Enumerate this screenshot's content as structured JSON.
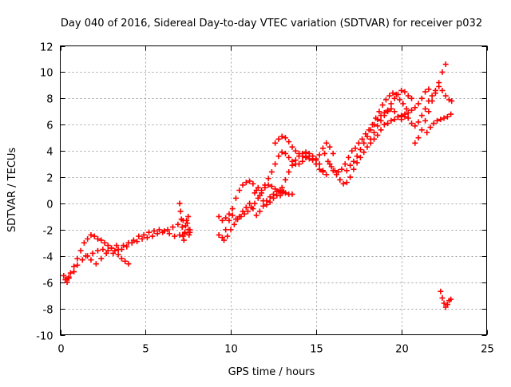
{
  "chart_data": {
    "type": "scatter",
    "title": "Day 040 of 2016, Sidereal Day-to-day VTEC variation (SDTVAR) for receiver p032",
    "xlabel": "GPS time / hours",
    "ylabel": "SDTVAR / TECUs",
    "xlim": [
      0,
      25
    ],
    "ylim": [
      -10,
      12
    ],
    "x_ticks": [
      0,
      5,
      10,
      15,
      20,
      25
    ],
    "x_tick_labels": [
      "0",
      "5",
      "10",
      "15",
      "20",
      "25"
    ],
    "y_ticks": [
      -10,
      -8,
      -6,
      -4,
      -2,
      0,
      2,
      4,
      6,
      8,
      10,
      12
    ],
    "y_tick_labels": [
      "-10",
      "-8",
      "-6",
      "-4",
      "-2",
      "0",
      "2",
      "4",
      "6",
      "8",
      "10",
      "12"
    ],
    "grid": true,
    "marker": "+",
    "color": "#ff0000",
    "series": [
      {
        "x": [
          0.2,
          0.3,
          0.4,
          0.5,
          0.6,
          0.8,
          1.0,
          1.2,
          1.4,
          1.6,
          1.8,
          2.0,
          2.2,
          2.4,
          2.6,
          2.8,
          3.0,
          3.2,
          3.4,
          3.6,
          3.8,
          4.0
        ],
        "y": [
          -5.5,
          -5.8,
          -6.0,
          -5.7,
          -5.3,
          -4.8,
          -4.2,
          -3.6,
          -3.0,
          -2.7,
          -2.4,
          -2.5,
          -2.7,
          -2.8,
          -3.0,
          -3.2,
          -3.4,
          -3.6,
          -3.9,
          -4.2,
          -4.4,
          -4.6
        ]
      },
      {
        "x": [
          0.3,
          0.5,
          0.8,
          1.0,
          1.3,
          1.6,
          1.9,
          2.2,
          2.5,
          2.8,
          3.1,
          3.4,
          3.7,
          4.0,
          4.3,
          4.6,
          4.9,
          5.2,
          5.5,
          5.8,
          6.1,
          6.4,
          6.7,
          7.0,
          7.3,
          7.6
        ],
        "y": [
          -5.8,
          -5.6,
          -5.2,
          -4.7,
          -4.3,
          -4.0,
          -3.8,
          -3.6,
          -3.5,
          -3.6,
          -3.8,
          -3.5,
          -3.2,
          -3.0,
          -2.8,
          -2.5,
          -2.4,
          -2.2,
          -2.1,
          -2.0,
          -2.1,
          -2.3,
          -2.5,
          -2.4,
          -2.2,
          -2.0
        ]
      },
      {
        "x": [
          1.5,
          1.8,
          2.1,
          2.4,
          2.7,
          3.0,
          3.3,
          3.6,
          3.9,
          4.2,
          4.5,
          4.8,
          5.1,
          5.4,
          5.7,
          6.0,
          6.3,
          6.6,
          6.9,
          7.2,
          7.5
        ],
        "y": [
          -4.0,
          -4.3,
          -4.6,
          -4.2,
          -3.8,
          -3.4,
          -3.2,
          -3.5,
          -3.3,
          -3.0,
          -2.9,
          -2.7,
          -2.6,
          -2.5,
          -2.3,
          -2.2,
          -2.0,
          -1.8,
          -1.6,
          -1.3,
          -1.0
        ]
      },
      {
        "x": [
          7.0,
          7.05,
          7.1,
          7.15,
          7.2,
          7.25,
          7.3,
          7.35,
          7.4,
          7.45,
          7.5,
          7.55,
          7.6
        ],
        "y": [
          0.0,
          -0.6,
          -1.2,
          -1.8,
          -2.5,
          -2.8,
          -2.3,
          -1.7,
          -1.3,
          -1.5,
          -2.0,
          -2.4,
          -2.2
        ]
      },
      {
        "x": [
          9.3,
          9.5,
          9.7,
          9.9,
          10.1,
          10.3,
          10.5,
          10.7,
          10.9,
          11.1,
          11.3,
          11.5,
          11.7,
          11.9,
          12.1,
          12.3,
          12.5,
          12.7,
          12.9,
          13.1
        ],
        "y": [
          -1.0,
          -1.3,
          -1.1,
          -0.8,
          -0.9,
          -1.2,
          -1.0,
          -0.6,
          -0.3,
          0.0,
          -0.4,
          -0.9,
          -0.6,
          -0.2,
          0.2,
          0.5,
          0.7,
          0.9,
          1.0,
          0.9
        ]
      },
      {
        "x": [
          9.3,
          9.5,
          9.7,
          9.9,
          10.1,
          10.3,
          10.5,
          10.7,
          10.9,
          11.1,
          11.3,
          11.5,
          11.7,
          11.9,
          12.1,
          12.3,
          12.5,
          12.7,
          12.9
        ],
        "y": [
          -2.4,
          -2.6,
          -2.0,
          -1.3,
          -0.4,
          0.4,
          1.0,
          1.4,
          1.6,
          1.7,
          1.5,
          1.0,
          0.6,
          0.2,
          -0.1,
          0.1,
          0.4,
          0.6,
          0.6
        ]
      },
      {
        "x": [
          9.6,
          9.8,
          10.0,
          10.2,
          10.4,
          10.6,
          10.8,
          11.0,
          11.2,
          11.4,
          11.6,
          11.8,
          12.0,
          12.2,
          12.4,
          12.6,
          12.8,
          13.0,
          13.2,
          13.4,
          13.6
        ],
        "y": [
          -2.8,
          -2.5,
          -2.0,
          -1.6,
          -1.2,
          -1.0,
          -0.8,
          -0.6,
          -0.3,
          0.0,
          0.4,
          0.8,
          1.2,
          1.4,
          1.3,
          1.1,
          0.9,
          0.8,
          0.8,
          0.7,
          0.7
        ]
      },
      {
        "x": [
          11.4,
          11.6,
          11.8,
          12.0,
          12.2,
          12.4,
          12.6,
          12.8,
          13.0,
          13.2,
          13.4,
          13.6,
          13.8,
          14.0,
          14.2,
          14.4,
          14.6,
          14.8,
          15.0,
          15.2,
          15.4,
          15.6,
          15.8,
          16.0
        ],
        "y": [
          0.8,
          1.2,
          1.0,
          1.4,
          1.9,
          2.4,
          3.0,
          3.6,
          3.9,
          3.8,
          3.5,
          3.2,
          3.0,
          3.0,
          3.2,
          3.5,
          3.6,
          3.4,
          3.3,
          3.7,
          4.2,
          4.6,
          4.3,
          3.8
        ]
      },
      {
        "x": [
          12.6,
          12.8,
          13.0,
          13.2,
          13.4,
          13.6,
          13.8,
          14.0,
          14.2,
          14.4,
          14.6,
          14.8,
          15.0,
          15.2,
          15.4,
          15.6
        ],
        "y": [
          4.6,
          4.9,
          5.1,
          5.0,
          4.7,
          4.3,
          4.0,
          3.8,
          3.6,
          3.5,
          3.4,
          3.3,
          3.0,
          2.6,
          2.4,
          2.2
        ]
      },
      {
        "x": [
          13.0,
          13.2,
          13.4,
          13.6,
          13.8,
          14.0,
          14.2,
          14.4,
          14.6,
          14.8,
          15.0,
          15.2,
          15.4
        ],
        "y": [
          1.2,
          1.8,
          2.4,
          2.9,
          3.3,
          3.6,
          3.8,
          3.9,
          3.8,
          3.6,
          3.4,
          3.0,
          2.5
        ]
      },
      {
        "x": [
          15.5,
          15.7,
          15.9,
          16.1,
          16.3,
          16.5,
          16.7,
          16.9,
          17.1,
          17.3,
          17.5,
          17.7,
          17.9,
          18.1,
          18.3,
          18.5,
          18.7,
          18.9,
          19.1,
          19.3,
          19.5,
          19.7,
          19.9,
          20.1,
          20.3
        ],
        "y": [
          3.8,
          3.2,
          2.8,
          2.5,
          2.4,
          2.6,
          3.0,
          3.5,
          4.0,
          4.2,
          4.6,
          4.9,
          5.3,
          5.6,
          6.0,
          6.5,
          7.0,
          7.5,
          7.9,
          8.2,
          8.4,
          8.3,
          7.9,
          7.6,
          7.2
        ]
      },
      {
        "x": [
          15.8,
          16.0,
          16.2,
          16.4,
          16.6,
          16.8,
          17.0,
          17.2,
          17.4,
          17.6,
          17.8,
          18.0,
          18.2,
          18.4,
          18.6,
          18.8,
          19.0,
          19.2,
          19.4,
          19.6,
          19.8,
          20.0,
          20.2,
          20.4,
          20.6,
          20.8,
          21.0,
          21.2,
          21.4,
          21.6
        ],
        "y": [
          3.0,
          2.5,
          2.2,
          1.8,
          1.5,
          1.6,
          2.0,
          2.6,
          3.1,
          3.5,
          3.9,
          4.3,
          4.9,
          5.4,
          5.9,
          6.3,
          6.7,
          7.0,
          7.2,
          7.0,
          6.6,
          6.4,
          6.6,
          6.9,
          7.1,
          7.3,
          7.6,
          8.0,
          8.5,
          8.7
        ]
      },
      {
        "x": [
          16.8,
          17.0,
          17.2,
          17.4,
          17.6,
          17.8,
          18.0,
          18.2,
          18.4,
          18.6,
          18.8,
          19.0,
          19.2,
          19.4,
          19.6,
          19.8,
          20.0,
          20.2,
          20.4,
          20.6
        ],
        "y": [
          2.5,
          2.9,
          3.2,
          3.6,
          4.1,
          4.6,
          5.1,
          5.6,
          6.0,
          6.4,
          6.7,
          6.9,
          7.1,
          7.6,
          8.0,
          8.3,
          8.6,
          8.5,
          8.2,
          8.0
        ]
      },
      {
        "x": [
          18.2,
          18.4,
          18.6,
          18.8,
          19.0,
          19.2,
          19.4,
          19.6,
          19.8,
          20.0,
          20.2,
          20.4,
          20.6,
          20.8,
          21.0,
          21.2,
          21.4,
          21.6,
          21.8,
          22.0,
          22.2,
          22.4,
          22.6
        ],
        "y": [
          4.6,
          4.9,
          5.2,
          5.6,
          6.0,
          6.1,
          6.3,
          6.4,
          6.6,
          6.7,
          6.8,
          6.5,
          6.1,
          5.9,
          6.2,
          6.7,
          7.2,
          7.8,
          8.2,
          8.6,
          9.2,
          10.0,
          10.6
        ]
      },
      {
        "x": [
          20.8,
          21.0,
          21.2,
          21.4,
          21.6,
          21.8,
          22.0,
          22.2,
          22.4,
          22.6,
          22.8,
          22.95
        ],
        "y": [
          4.6,
          5.0,
          5.6,
          6.3,
          7.0,
          7.8,
          8.4,
          8.9,
          8.6,
          8.2,
          7.9,
          7.8
        ]
      },
      {
        "x": [
          21.5,
          21.7,
          21.9,
          22.1,
          22.3,
          22.5,
          22.7,
          22.9
        ],
        "y": [
          5.4,
          5.8,
          6.1,
          6.3,
          6.4,
          6.5,
          6.6,
          6.8
        ]
      },
      {
        "x": [
          22.3,
          22.4,
          22.5,
          22.6,
          22.7,
          22.8,
          22.9
        ],
        "y": [
          -6.7,
          -7.2,
          -7.6,
          -7.9,
          -7.7,
          -7.4,
          -7.3
        ]
      }
    ]
  }
}
